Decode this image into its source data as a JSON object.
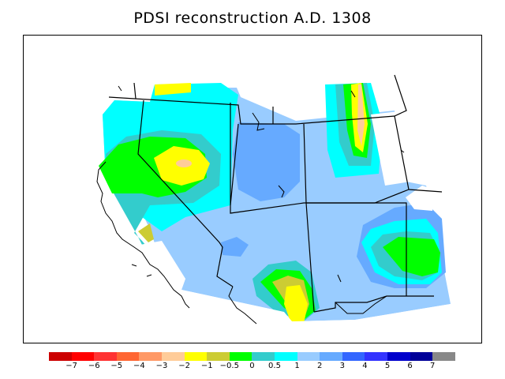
{
  "title": "PDSI reconstruction A.D. 1308",
  "colors": {
    "background": "#ffffff",
    "frame": "#000000",
    "very_wet": "#66aaff",
    "wet": "#99ccff",
    "moist": "#00ffff",
    "near_normal": "#33cccc",
    "slightly_dry": "#00ff00",
    "dry": "#cccc33",
    "drier": "#ffff00",
    "driest": "#ffcc99"
  },
  "legend": {
    "swatches": [
      "#cc0000",
      "#ff0000",
      "#ff3333",
      "#ff6633",
      "#ff9966",
      "#ffcc99",
      "#ffff00",
      "#cccc33",
      "#00ff00",
      "#33cccc",
      "#00ffff",
      "#99ccff",
      "#66aaff",
      "#3366ff",
      "#3333ff",
      "#0000cc",
      "#000099",
      "#888888"
    ],
    "labels": [
      "−7",
      "−6",
      "−5",
      "−4",
      "−3",
      "−2",
      "−1",
      "−0.5",
      "0",
      "0.5",
      "1",
      "2",
      "3",
      "4",
      "5",
      "6",
      "7"
    ]
  }
}
